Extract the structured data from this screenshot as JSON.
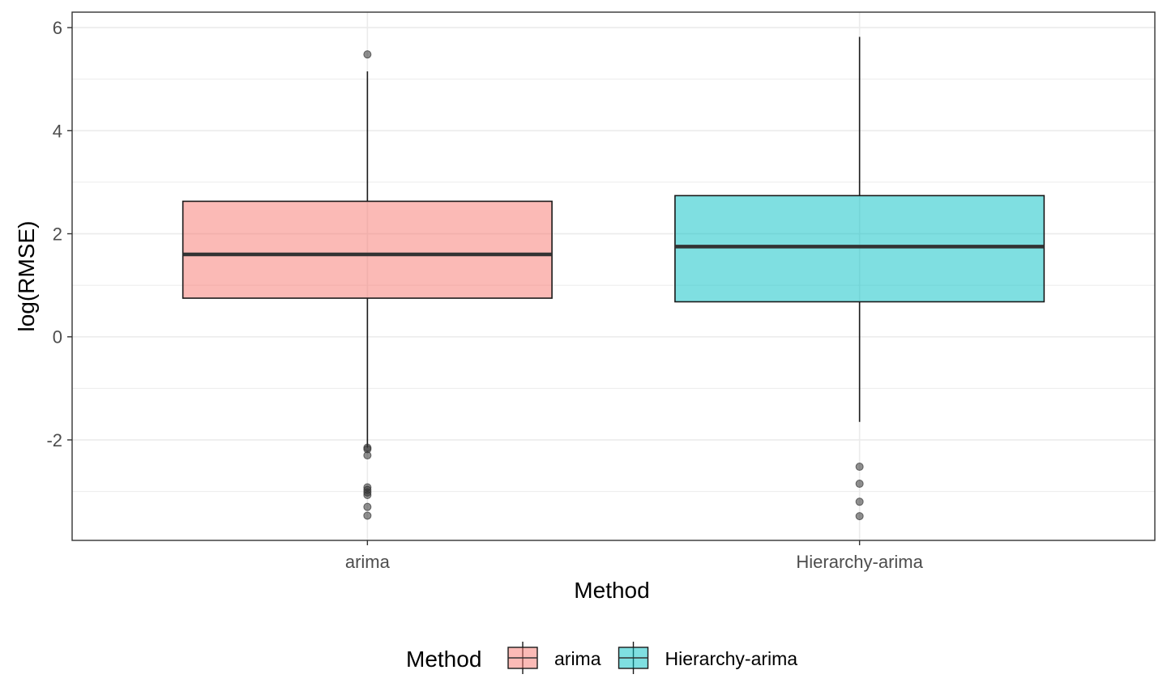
{
  "chart_data": {
    "type": "boxplot",
    "title": "",
    "xlabel": "Method",
    "ylabel": "log(RMSE)",
    "ylim": [
      -3.95,
      6.3
    ],
    "yticks": [
      6,
      4,
      2,
      0,
      -2
    ],
    "ytick_labels": [
      "6",
      "4",
      "2",
      "0",
      "-2"
    ],
    "grid": true,
    "legend_position": "bottom",
    "legend_title": "Method",
    "categories": [
      "arima",
      "Hierarchy-arima"
    ],
    "series": [
      {
        "name": "arima",
        "color": "#F8766D",
        "whisker_low": -2.15,
        "q1": 0.75,
        "median": 1.6,
        "q3": 2.63,
        "whisker_high": 5.15,
        "outliers": [
          5.48,
          -2.15,
          -2.18,
          -2.3,
          -2.92,
          -2.97,
          -3.02,
          -3.07,
          -3.3,
          -3.47
        ]
      },
      {
        "name": "Hierarchy-arima",
        "color": "#00BFC4",
        "whisker_low": -1.65,
        "q1": 0.68,
        "median": 1.75,
        "q3": 2.74,
        "whisker_high": 5.82,
        "outliers": [
          -2.52,
          -2.85,
          -3.2,
          -3.48
        ]
      }
    ]
  }
}
